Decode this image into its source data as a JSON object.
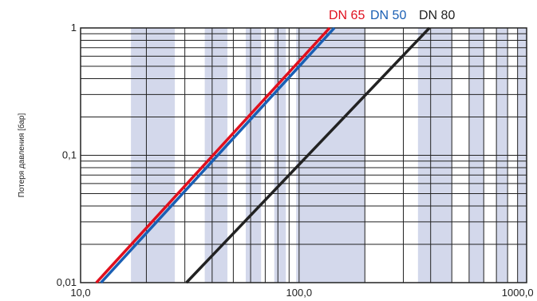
{
  "chart_data": {
    "type": "line",
    "xscale": "log",
    "yscale": "log",
    "xlim": [
      10,
      1100
    ],
    "ylim": [
      0.01,
      1
    ],
    "xlabel": "",
    "ylabel": "Потеря давления [бар]",
    "xticks": [
      {
        "value": 10,
        "label": "10,0"
      },
      {
        "value": 100,
        "label": "100,0"
      },
      {
        "value": 1000,
        "label": "1000,0"
      }
    ],
    "yticks": [
      {
        "value": 0.01,
        "label": "0,01"
      },
      {
        "value": 0.1,
        "label": "0,1"
      },
      {
        "value": 1,
        "label": "1"
      }
    ],
    "grid": true,
    "legend": "top-right",
    "series": [
      {
        "name": "DN 65",
        "color": "#e0101e",
        "x": [
          11.8,
          138
        ],
        "y": [
          0.01,
          1
        ]
      },
      {
        "name": "DN 50",
        "color": "#1a5fb4",
        "x": [
          12.4,
          145
        ],
        "y": [
          0.01,
          1
        ]
      },
      {
        "name": "DN 80",
        "color": "#222222",
        "x": [
          30.5,
          395
        ],
        "y": [
          0.01,
          1
        ]
      }
    ]
  }
}
